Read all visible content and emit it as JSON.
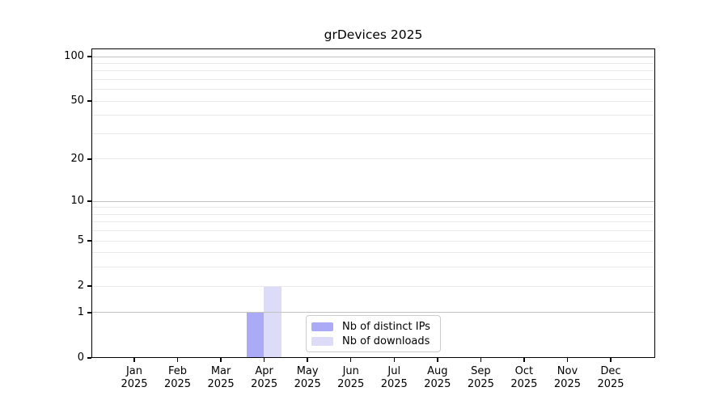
{
  "chart_data": {
    "type": "bar",
    "title": "grDevices 2025",
    "categories": [
      "Jan",
      "Feb",
      "Mar",
      "Apr",
      "May",
      "Jun",
      "Jul",
      "Aug",
      "Sep",
      "Oct",
      "Nov",
      "Dec"
    ],
    "category_year": "2025",
    "series": [
      {
        "name": "Nb of distinct IPs",
        "color": "#aaaaf7",
        "values": [
          0,
          0,
          0,
          1,
          0,
          0,
          0,
          0,
          0,
          0,
          0,
          0
        ]
      },
      {
        "name": "Nb of downloads",
        "color": "#dcdcf9",
        "values": [
          0,
          0,
          0,
          2,
          0,
          0,
          0,
          0,
          0,
          0,
          0,
          0
        ]
      }
    ],
    "y_axis": {
      "scale": "log1p",
      "ylim": [
        0,
        100
      ],
      "tick_labels": [
        0,
        1,
        2,
        5,
        10,
        20,
        50,
        100
      ],
      "decade_gridlines": [
        1,
        10,
        100
      ],
      "minor_gridlines": [
        2,
        3,
        4,
        5,
        6,
        7,
        8,
        9,
        20,
        30,
        40,
        50,
        60,
        70,
        80,
        90
      ]
    },
    "legend": {
      "position": "lower center"
    },
    "colors": {
      "grid_decade": "#c3c3c3",
      "grid_minor": "#e9e9e9",
      "spine": "#000000",
      "text": "#000000"
    }
  }
}
